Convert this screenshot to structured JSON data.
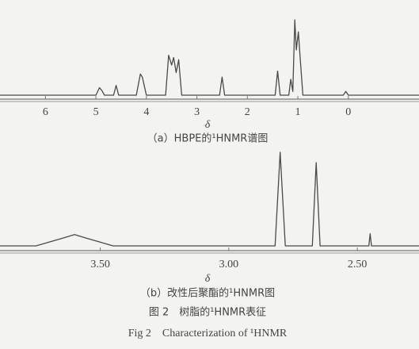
{
  "chart_data": [
    {
      "type": "line",
      "xlabel": "δ",
      "caption": "（a）HBPE的¹HNMR谱图",
      "xlim": [
        6.9,
        -1.4
      ],
      "xticks": [
        6,
        5,
        4,
        3,
        2,
        1,
        0
      ],
      "ylim": [
        0,
        100
      ],
      "series": [
        {
          "color": "#4a4a4a",
          "x": [
            6.9,
            5.0,
            4.93,
            4.88,
            4.83,
            4.65,
            4.6,
            4.55,
            4.2,
            4.12,
            4.08,
            4.0,
            3.62,
            3.56,
            3.5,
            3.46,
            3.41,
            3.36,
            3.3,
            2.55,
            2.5,
            2.45,
            1.45,
            1.4,
            1.35,
            1.18,
            1.14,
            1.1,
            1.06,
            1.03,
            0.99,
            0.96,
            0.9,
            0.1,
            0.05,
            0.0,
            -1.4
          ],
          "values": [
            0,
            0,
            10,
            6,
            0,
            0,
            13,
            0,
            0,
            28,
            24,
            0,
            0,
            53,
            40,
            50,
            30,
            47,
            0,
            0,
            24,
            0,
            0,
            32,
            0,
            0,
            21,
            5,
            100,
            60,
            84,
            55,
            0,
            0,
            5,
            0,
            0
          ]
        }
      ]
    },
    {
      "type": "line",
      "xlabel": "δ",
      "caption": "（b）改性后聚酯的¹HNMR图",
      "xlim": [
        3.89,
        2.26
      ],
      "xticks": [
        {
          "value": 3.5,
          "label": "3.50"
        },
        {
          "value": 3,
          "label": "3.00"
        },
        {
          "value": 2.5,
          "label": "2.50"
        }
      ],
      "ylim": [
        0,
        100
      ],
      "series": [
        {
          "color": "#4a4a4a",
          "x": [
            3.89,
            3.75,
            3.65,
            3.6,
            3.55,
            3.45,
            2.82,
            2.8,
            2.78,
            2.675,
            2.66,
            2.645,
            2.455,
            2.45,
            2.445,
            2.26
          ],
          "values": [
            0,
            0,
            8,
            12,
            8,
            0,
            0,
            100,
            0,
            0,
            89,
            0,
            0,
            13,
            0,
            0
          ]
        }
      ]
    }
  ],
  "figure": {
    "caption_cn": "图 2　树脂的¹HNMR表征",
    "caption_en": "Fig 2　Characterization of ¹HNMR"
  }
}
